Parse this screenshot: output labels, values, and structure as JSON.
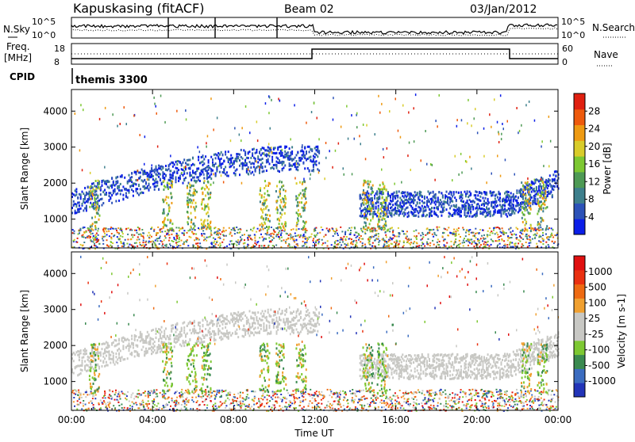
{
  "header": {
    "station": "Kapuskasing (fitACF)",
    "beam": "Beam 02",
    "date": "03/Jan/2012"
  },
  "noise_panel": {
    "left_label": "N.Sky",
    "right_label": "N.Search",
    "left_ticks": [
      "10^5",
      "10^0"
    ],
    "right_ticks": [
      "10^5",
      "10^0"
    ]
  },
  "freq_panel": {
    "left_label_line1": "Freq.",
    "left_label_line2": "[MHz]",
    "right_label": "Nave",
    "left_ticks": [
      "18",
      "8"
    ],
    "right_ticks": [
      "60",
      "0"
    ]
  },
  "cpid": {
    "label": "CPID",
    "value": "themis 3300"
  },
  "colors": {
    "power_scale": [
      "#0b1ee8",
      "#2c52b8",
      "#3d7f8c",
      "#4e9a55",
      "#7dc832",
      "#d8cc2a",
      "#ee9a12",
      "#ee5a0c",
      "#e02010"
    ],
    "velocity_scale": [
      "#2234b8",
      "#3b6cc0",
      "#3a8a50",
      "#7dc832",
      "#c8c8c4",
      "#c8c8c4",
      "#f0a030",
      "#ee6a12",
      "#ea3010",
      "#e01010"
    ]
  },
  "chart_data": [
    {
      "type": "heatmap",
      "name": "power",
      "xlabel": "",
      "ylabel": "Slant Range [km]",
      "x_ticks": [
        "00:00",
        "04:00",
        "08:00",
        "12:00",
        "16:00",
        "20:00",
        "00:00"
      ],
      "y_ticks": [
        1000,
        2000,
        3000,
        4000
      ],
      "ylim": [
        200,
        4600
      ],
      "colorbar": {
        "label": "Power [dB]",
        "ticks": [
          4,
          8,
          12,
          16,
          20,
          24,
          28
        ]
      }
    },
    {
      "type": "heatmap",
      "name": "velocity",
      "xlabel": "Time UT",
      "ylabel": "Slant Range [km]",
      "x_ticks": [
        "00:00",
        "04:00",
        "08:00",
        "12:00",
        "16:00",
        "20:00",
        "00:00"
      ],
      "y_ticks": [
        1000,
        2000,
        3000,
        4000
      ],
      "ylim": [
        200,
        4600
      ],
      "colorbar": {
        "label": "Velocity [m s-1]",
        "ticks": [
          1000,
          500,
          100,
          25,
          -25,
          -100,
          -500,
          -1000
        ]
      }
    }
  ]
}
